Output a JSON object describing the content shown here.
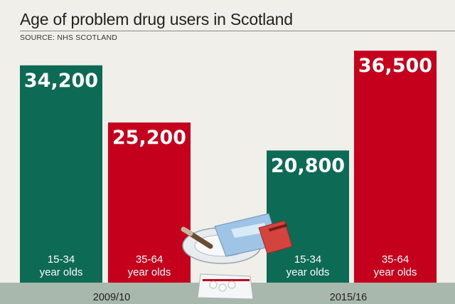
{
  "chart_data": {
    "type": "bar",
    "title": "Age of problem drug users in Scotland",
    "source": "SOURCE: NHS SCOTLAND",
    "groups": [
      "2009/10",
      "2015/16"
    ],
    "series": [
      {
        "name_line1": "15-34",
        "name_line2": "year olds",
        "color": "#0c6a55",
        "values": [
          34200,
          20800
        ]
      },
      {
        "name_line1": "35-64",
        "name_line2": "year olds",
        "color": "#c5001c",
        "values": [
          25200,
          36500
        ]
      }
    ],
    "value_labels": [
      [
        "34,200",
        "20,800"
      ],
      [
        "25,200",
        "36,500"
      ]
    ],
    "ylim": [
      0,
      40000
    ],
    "footer_color": "#a9b8ac"
  }
}
